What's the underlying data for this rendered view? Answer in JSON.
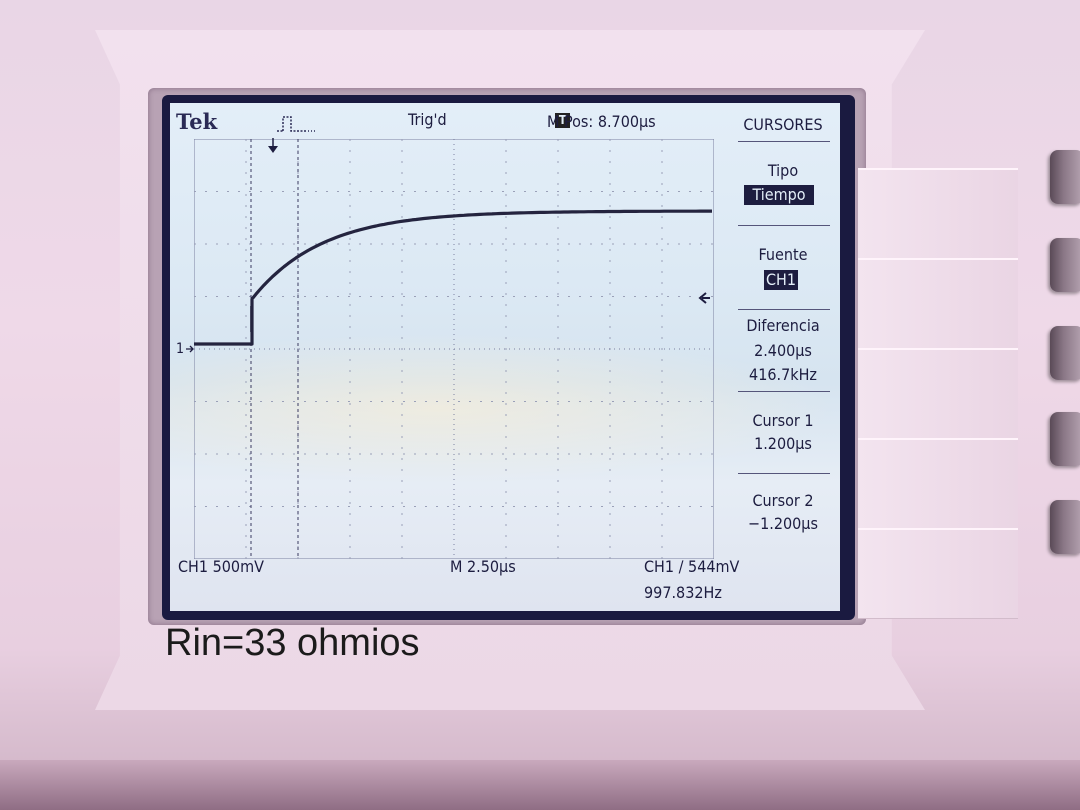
{
  "header": {
    "brand": "Tek",
    "trigger_icon_letter": "T",
    "trigger_status": "Trig'd",
    "m_pos": "M Pos: 8.700µs"
  },
  "menu": {
    "title": "CURSORES",
    "tipo_label": "Tipo",
    "tipo_value": "Tiempo",
    "fuente_label": "Fuente",
    "fuente_value": "CH1",
    "diferencia_label": "Diferencia",
    "diferencia_time": "2.400µs",
    "diferencia_freq": "416.7kHz",
    "cursor1_label": "Cursor 1",
    "cursor1_value": "1.200µs",
    "cursor2_label": "Cursor 2",
    "cursor2_value": "−1.200µs"
  },
  "footer": {
    "ch1_scale": "CH1  500mV",
    "timebase": "M 2.50µs",
    "trigger_readout": "CH1 ∕ 544mV",
    "frequency": "997.832Hz"
  },
  "channel_marker": "1",
  "caption": "Rin=33 ohmios",
  "colors": {
    "lcd_background": "#dce9f4",
    "trace": "#24243f",
    "highlight": "#1d1d40"
  },
  "icons": [
    "trigger-pulse-icon",
    "trigger-position-arrow-icon",
    "trigger-level-arrow-icon",
    "channel-ground-marker-icon"
  ]
}
